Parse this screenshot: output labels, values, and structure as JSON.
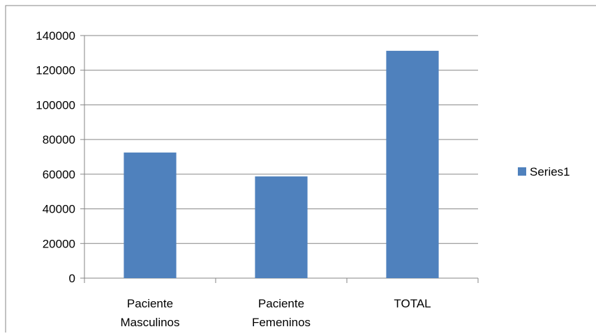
{
  "chart_data": {
    "type": "bar",
    "title": "",
    "xlabel": "",
    "ylabel": "",
    "categories": [
      [
        "Paciente",
        "Masculinos"
      ],
      [
        "Paciente",
        "Femeninos"
      ],
      [
        "TOTAL"
      ]
    ],
    "series": [
      {
        "name": "Series1",
        "values": [
          72500,
          58700,
          131200
        ],
        "color": "#4F81BD"
      }
    ],
    "ylim": [
      0,
      140000
    ],
    "yticks": [
      0,
      20000,
      40000,
      60000,
      80000,
      100000,
      120000,
      140000
    ],
    "grid": true,
    "legend": "right"
  }
}
